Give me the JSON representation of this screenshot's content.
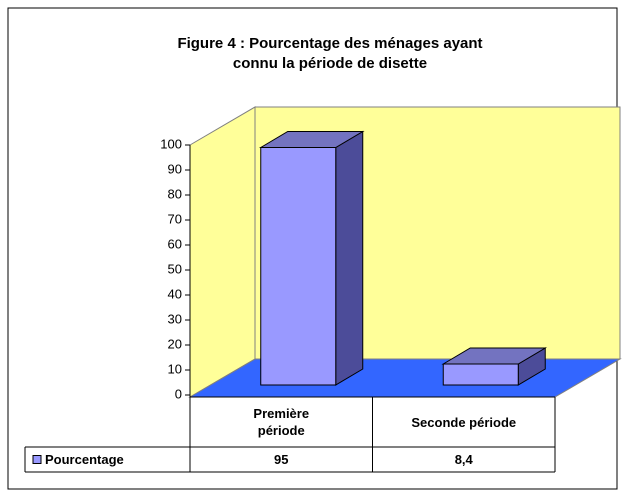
{
  "chart_data": {
    "type": "bar3d",
    "title": "Figure 4 : Pourcentage des ménages ayant\nconnu la période de disette",
    "categories": [
      "Première\npériode",
      "Seconde période"
    ],
    "series": [
      {
        "name": "Pourcentage",
        "color": "#9999ff",
        "values": [
          95,
          8.4
        ],
        "value_labels": [
          "95",
          "8,4"
        ]
      }
    ],
    "ylim": [
      0,
      100
    ],
    "yticks": [
      0,
      10,
      20,
      30,
      40,
      50,
      60,
      70,
      80,
      90,
      100
    ],
    "wall_color": "#ffff99",
    "floor_color": "#3366ff"
  }
}
